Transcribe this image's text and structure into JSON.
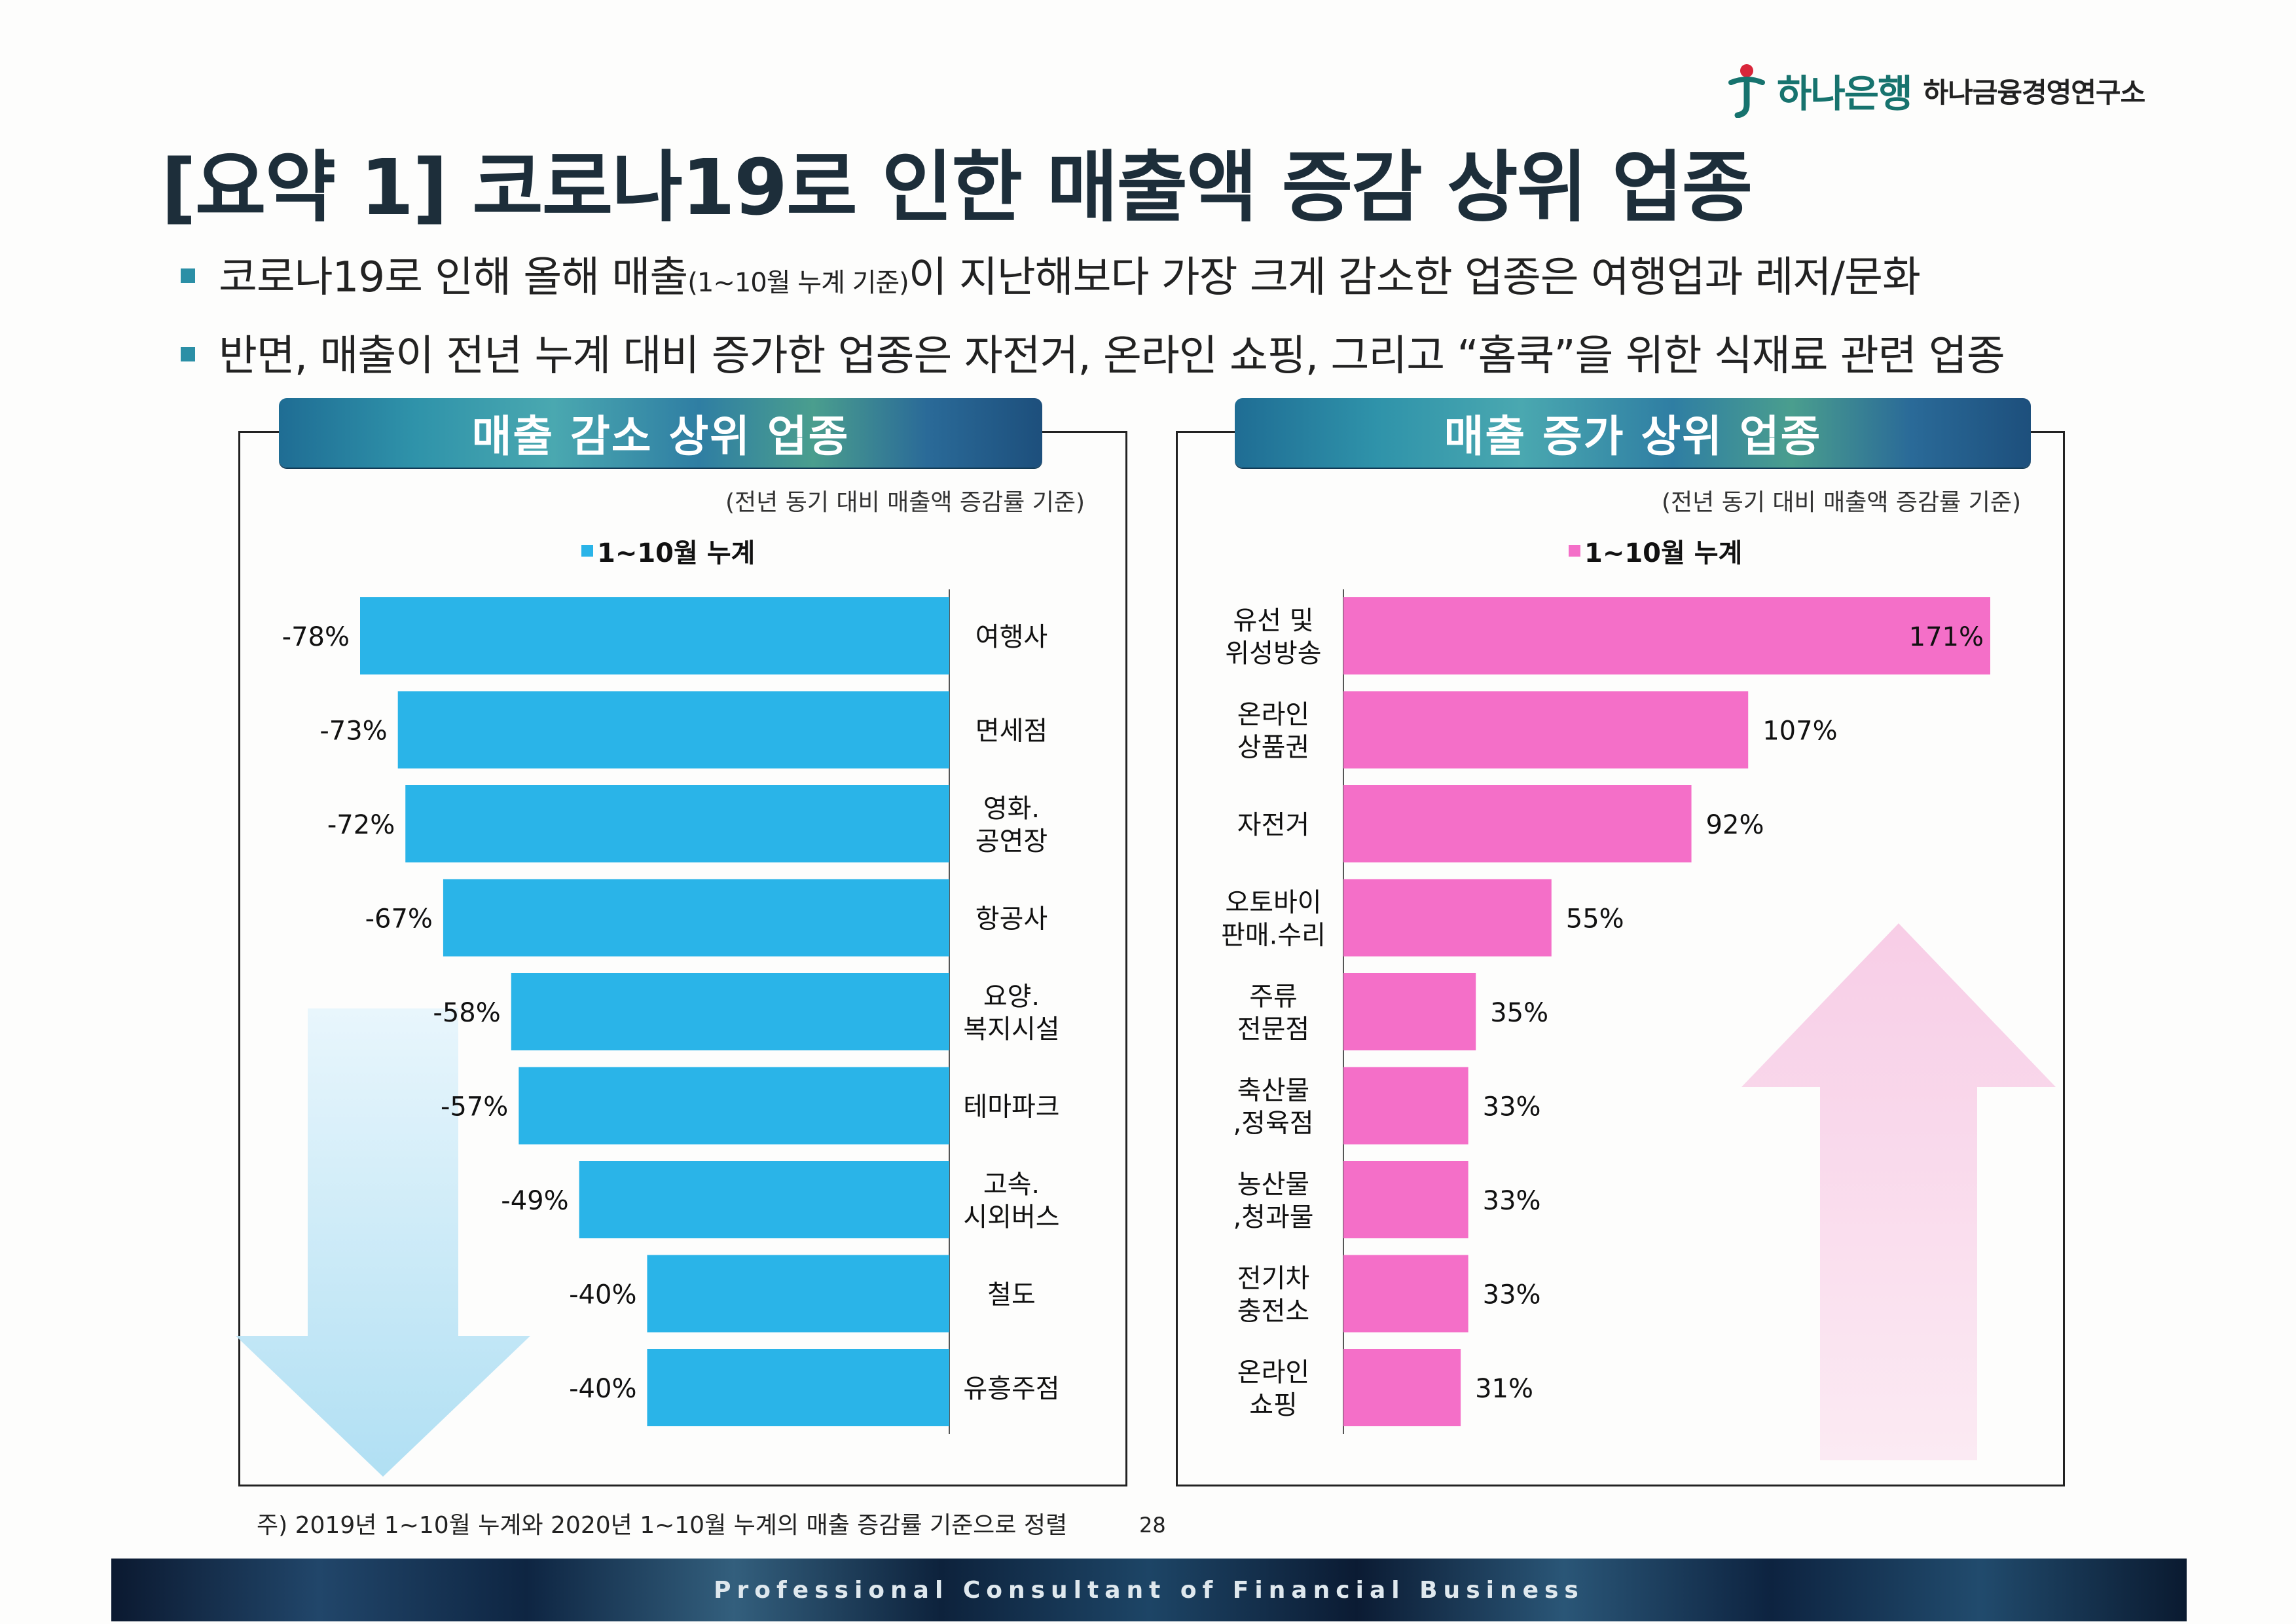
{
  "logo": {
    "bank_name": "하나은행",
    "institute": "하나금융경영연구소"
  },
  "title": "[요약 1] 코로나19로 인한 매출액 증감 상위 업종",
  "bullets": [
    {
      "pre": "코로나19로 인해 올해 매출",
      "small": "(1~10월 누계 기준)",
      "post": "이 지난해보다 가장 크게 감소한 업종은 여행업과 레저/문화"
    },
    {
      "text": "반면, 매출이 전년 누계 대비 증가한 업종은 자전거, 온라인 쇼핑, 그리고 “홈쿡”을 위한 식재료 관련 업종"
    }
  ],
  "left_panel": {
    "header": "매출 감소 상위 업종",
    "basis": "(전년 동기 대비 매출액 증감률 기준)",
    "legend": "1~10월 누계"
  },
  "right_panel": {
    "header": "매출 증가 상위 업종",
    "basis": "(전년 동기 대비 매출액 증감률 기준)",
    "legend": "1~10월 누계"
  },
  "colors": {
    "decrease": "#2ab4e8",
    "increase": "#f46fc8",
    "banner": "#2a7fa3",
    "title": "#1d2e3a"
  },
  "chart_data": [
    {
      "type": "bar",
      "orientation": "horizontal",
      "title": "매출 감소 상위 업종",
      "series": [
        {
          "name": "1~10월 누계",
          "values": [
            -78,
            -73,
            -72,
            -67,
            -58,
            -57,
            -49,
            -40,
            -40
          ]
        }
      ],
      "categories": [
        "여행사",
        "면세점",
        "영화.\n공연장",
        "항공사",
        "요양.\n복지시설",
        "테마파크",
        "고속.\n시외버스",
        "철도",
        "유흥주점"
      ],
      "value_labels": [
        "-78%",
        "-73%",
        "-72%",
        "-67%",
        "-58%",
        "-57%",
        "-49%",
        "-40%",
        "-40%"
      ],
      "xlim": [
        -78,
        0
      ],
      "unit": "%"
    },
    {
      "type": "bar",
      "orientation": "horizontal",
      "title": "매출 증가 상위 업종",
      "series": [
        {
          "name": "1~10월 누계",
          "values": [
            171,
            107,
            92,
            55,
            35,
            33,
            33,
            33,
            31
          ]
        }
      ],
      "categories": [
        "유선 및\n위성방송",
        "온라인\n상품권",
        "자전거",
        "오토바이\n판매.수리",
        "주류\n전문점",
        "축산물\n,정육점",
        "농산물\n,청과물",
        "전기차\n충전소",
        "온라인\n쇼핑"
      ],
      "value_labels": [
        "171%",
        "107%",
        "92%",
        "55%",
        "35%",
        "33%",
        "33%",
        "33%",
        "31%"
      ],
      "xlim": [
        0,
        171
      ],
      "unit": "%"
    }
  ],
  "footnote": "주) 2019년 1~10월 누계와 2020년 1~10월 누계의 매출 증감률 기준으로 정렬",
  "page_number": "28",
  "footer": "Professional Consultant of Financial Business"
}
